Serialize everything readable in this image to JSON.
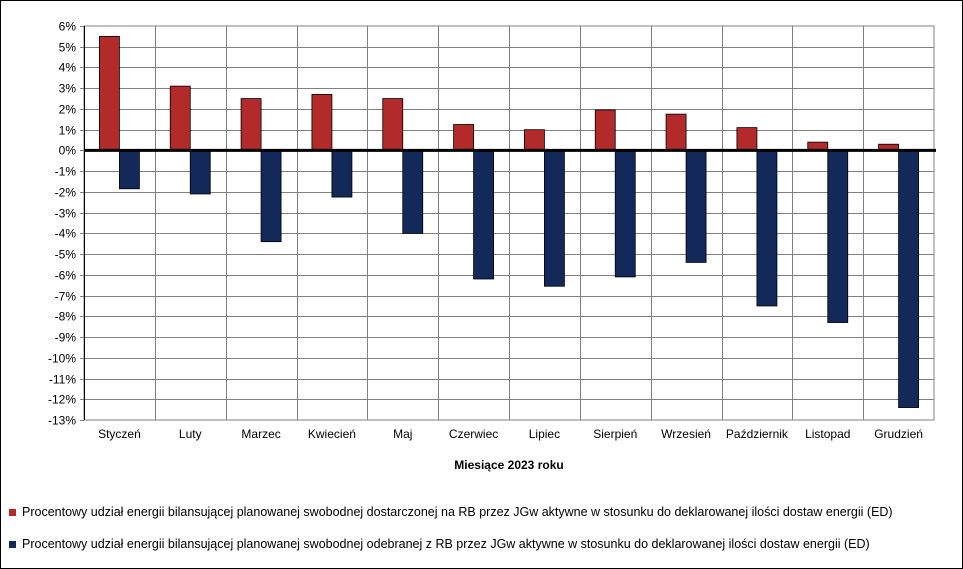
{
  "chart_data": {
    "type": "bar",
    "xlabel": "Miesiące 2023  roku",
    "ylabel": "",
    "ylim": [
      -13,
      6
    ],
    "y_tick_step": 1,
    "y_tick_format": "{v}%",
    "grid": true,
    "legend_position": "bottom",
    "categories": [
      "Styczeń",
      "Luty",
      "Marzec",
      "Kwiecień",
      "Maj",
      "Czerwiec",
      "Lipiec",
      "Sierpień",
      "Wrzesień",
      "Październik",
      "Listopad",
      "Grudzień"
    ],
    "y_ticks": [
      "6%",
      "5%",
      "4%",
      "3%",
      "2%",
      "1%",
      "0%",
      "-1%",
      "-2%",
      "-3%",
      "-4%",
      "-5%",
      "-6%",
      "-7%",
      "-8%",
      "-9%",
      "-10%",
      "-11%",
      "-12%",
      "-13%"
    ],
    "series": [
      {
        "name": "Procentowy udział energii bilansującej planowanej swobodnej dostarczonej na RB przez JGw aktywne w stosunku do deklarowanej ilości dostaw energii (ED)",
        "color": "#b22a2a",
        "values": [
          5.5,
          3.1,
          2.5,
          2.7,
          2.5,
          1.25,
          1.0,
          1.95,
          1.75,
          1.1,
          0.4,
          0.3
        ]
      },
      {
        "name": "Procentowy udział energii bilansującej planowanej swobodnej odebranej z RB przez JGw aktywne w stosunku do deklarowanej ilości dostaw energii (ED)",
        "color": "#12295a",
        "values": [
          -1.85,
          -2.1,
          -4.4,
          -2.25,
          -4.0,
          -6.2,
          -6.55,
          -6.1,
          -5.4,
          -7.5,
          -8.3,
          -12.4
        ]
      }
    ]
  }
}
